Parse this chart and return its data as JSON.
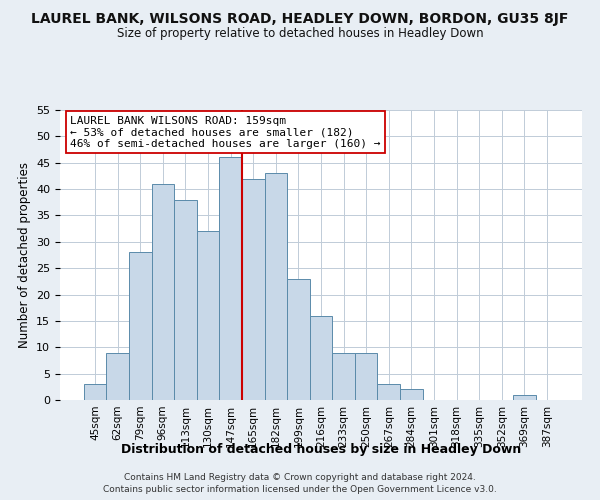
{
  "title": "LAUREL BANK, WILSONS ROAD, HEADLEY DOWN, BORDON, GU35 8JF",
  "subtitle": "Size of property relative to detached houses in Headley Down",
  "xlabel": "Distribution of detached houses by size in Headley Down",
  "ylabel": "Number of detached properties",
  "bar_labels": [
    "45sqm",
    "62sqm",
    "79sqm",
    "96sqm",
    "113sqm",
    "130sqm",
    "147sqm",
    "165sqm",
    "182sqm",
    "199sqm",
    "216sqm",
    "233sqm",
    "250sqm",
    "267sqm",
    "284sqm",
    "301sqm",
    "318sqm",
    "335sqm",
    "352sqm",
    "369sqm",
    "387sqm"
  ],
  "bar_values": [
    3,
    9,
    28,
    41,
    38,
    32,
    46,
    42,
    43,
    23,
    16,
    9,
    9,
    3,
    2,
    0,
    0,
    0,
    0,
    1,
    0
  ],
  "bar_color": "#c8d8e8",
  "bar_edge_color": "#5a8aaa",
  "vline_color": "#cc0000",
  "ylim": [
    0,
    55
  ],
  "yticks": [
    0,
    5,
    10,
    15,
    20,
    25,
    30,
    35,
    40,
    45,
    50,
    55
  ],
  "annotation_title": "LAUREL BANK WILSONS ROAD: 159sqm",
  "annotation_line1": "← 53% of detached houses are smaller (182)",
  "annotation_line2": "46% of semi-detached houses are larger (160) →",
  "footer1": "Contains HM Land Registry data © Crown copyright and database right 2024.",
  "footer2": "Contains public sector information licensed under the Open Government Licence v3.0.",
  "bg_color": "#e8eef4",
  "plot_bg_color": "#ffffff",
  "grid_color": "#c0ccd8"
}
